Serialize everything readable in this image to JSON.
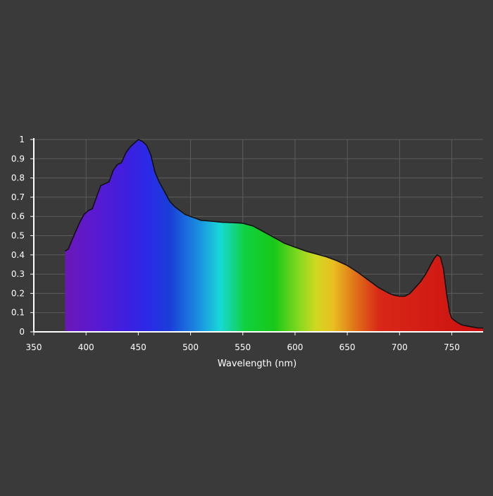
{
  "chart_data": {
    "type": "area",
    "title": "",
    "xlabel": "Wavelength (nm)",
    "ylabel": "",
    "xlim": [
      350,
      780
    ],
    "ylim": [
      0,
      1
    ],
    "x_ticks": [
      350,
      400,
      450,
      500,
      550,
      600,
      650,
      700,
      750
    ],
    "y_ticks": [
      0,
      0.1,
      0.2,
      0.3,
      0.4,
      0.5,
      0.6,
      0.7,
      0.8,
      0.9,
      1
    ],
    "y_tick_labels": [
      "0",
      "0.1",
      "0.2",
      "0.3",
      "0.4",
      "0.5",
      "0.6",
      "0.7",
      "0.8",
      "0.9",
      "1"
    ],
    "grid": true,
    "fill": "visible-spectrum gradient",
    "series": [
      {
        "x": [
          380,
          383,
          386,
          390,
          394,
          398,
          402,
          406,
          410,
          414,
          418,
          422,
          426,
          430,
          434,
          438,
          442,
          446,
          450,
          454,
          458,
          462,
          466,
          470,
          475,
          480,
          485,
          490,
          495,
          500,
          505,
          510,
          520,
          530,
          540,
          550,
          560,
          570,
          580,
          590,
          600,
          610,
          620,
          630,
          640,
          650,
          660,
          670,
          680,
          690,
          695,
          700,
          705,
          710,
          715,
          720,
          725,
          730,
          733,
          736,
          739,
          742,
          745,
          748,
          750,
          755,
          760,
          765,
          770,
          775,
          780
        ],
        "y": [
          0.42,
          0.43,
          0.47,
          0.52,
          0.57,
          0.61,
          0.63,
          0.64,
          0.7,
          0.76,
          0.77,
          0.78,
          0.84,
          0.87,
          0.88,
          0.93,
          0.96,
          0.98,
          1.0,
          0.99,
          0.97,
          0.92,
          0.83,
          0.78,
          0.73,
          0.68,
          0.65,
          0.63,
          0.61,
          0.6,
          0.59,
          0.58,
          0.575,
          0.57,
          0.568,
          0.565,
          0.55,
          0.52,
          0.49,
          0.46,
          0.44,
          0.42,
          0.405,
          0.39,
          0.37,
          0.345,
          0.31,
          0.27,
          0.23,
          0.2,
          0.19,
          0.185,
          0.185,
          0.2,
          0.23,
          0.26,
          0.3,
          0.35,
          0.38,
          0.4,
          0.39,
          0.33,
          0.2,
          0.1,
          0.07,
          0.05,
          0.035,
          0.03,
          0.025,
          0.02,
          0.02
        ]
      }
    ]
  }
}
